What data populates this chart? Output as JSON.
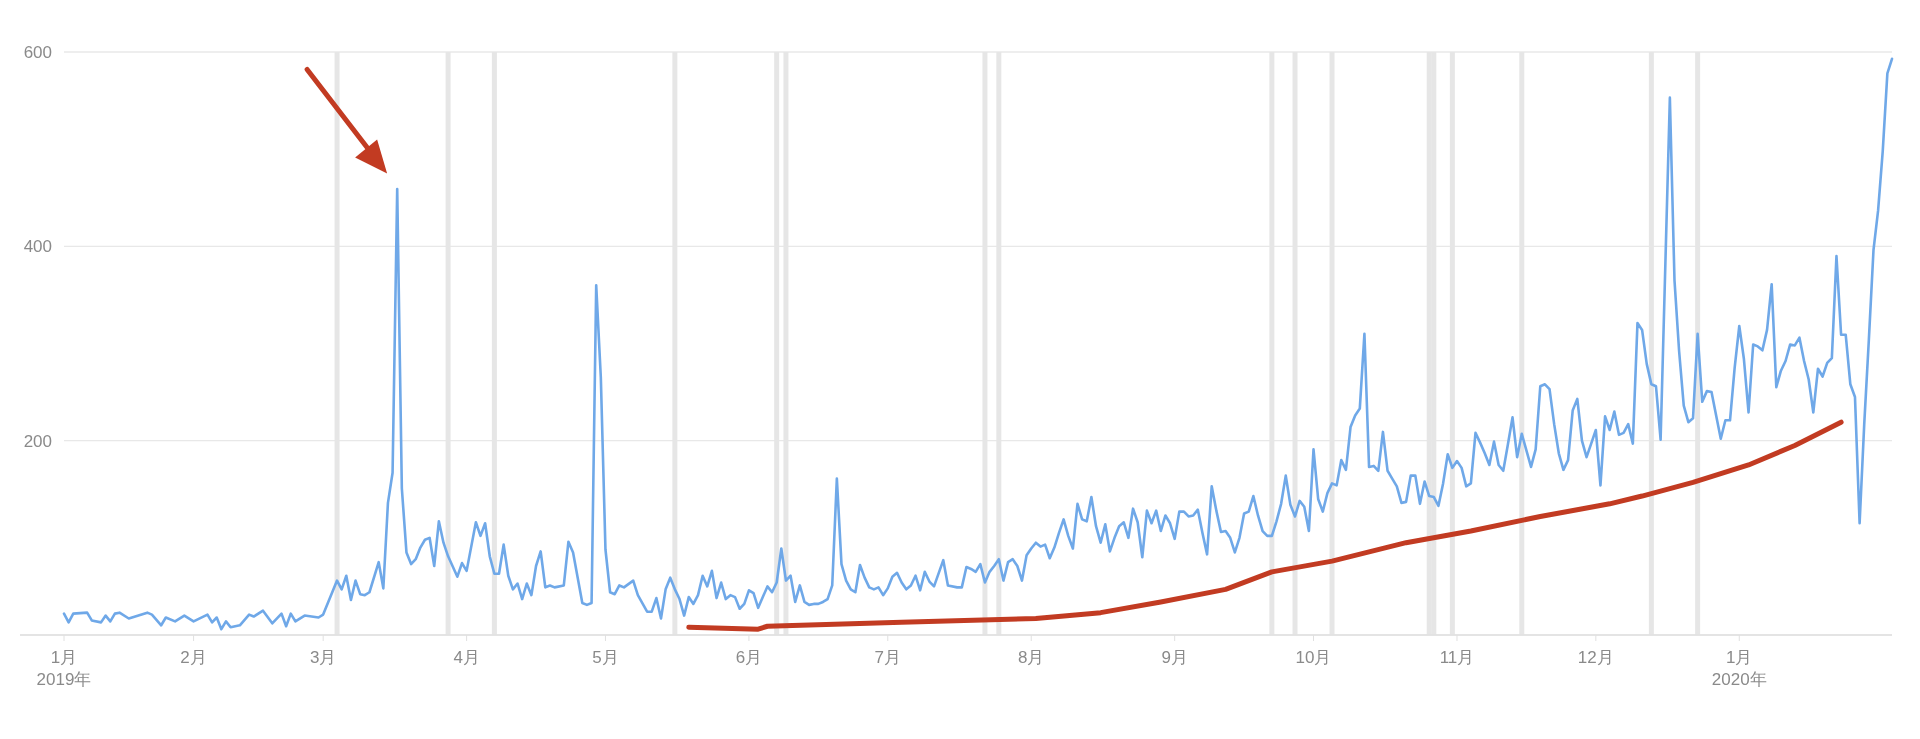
{
  "chart_data": {
    "type": "line",
    "xlim": [
      "2019-01-04",
      "2020-02-03"
    ],
    "xticks": [
      {
        "value": "2019-01-04",
        "label": "1月\n2019年"
      },
      {
        "value": "2019-02-01",
        "label": "2月"
      },
      {
        "value": "2019-03-01",
        "label": "3月"
      },
      {
        "value": "2019-04-01",
        "label": "4月"
      },
      {
        "value": "2019-05-01",
        "label": "5月"
      },
      {
        "value": "2019-06-01",
        "label": "6月"
      },
      {
        "value": "2019-07-01",
        "label": "7月"
      },
      {
        "value": "2019-08-01",
        "label": "8月"
      },
      {
        "value": "2019-09-01",
        "label": "9月"
      },
      {
        "value": "2019-10-01",
        "label": "10月"
      },
      {
        "value": "2019-11-01",
        "label": "11月"
      },
      {
        "value": "2019-12-01",
        "label": "12月"
      },
      {
        "value": "2020-01-01",
        "label": "1月\n2020年"
      }
    ],
    "ylim": [
      0,
      600
    ],
    "yticks": [
      {
        "value": 0,
        "label": null
      },
      200,
      400,
      600
    ],
    "grid": "y",
    "ref_lines": [
      {
        "axis": "x",
        "value": "2019-03-04",
        "color": "#e6e6e6"
      },
      {
        "axis": "x",
        "value": "2019-03-28",
        "color": "#e6e6e6"
      },
      {
        "axis": "x",
        "value": "2019-04-07",
        "color": "#e6e6e6"
      },
      {
        "axis": "x",
        "value": "2019-05-16",
        "color": "#e6e6e6"
      },
      {
        "axis": "x",
        "value": "2019-06-07",
        "color": "#e6e6e6"
      },
      {
        "axis": "x",
        "value": "2019-06-09",
        "color": "#e6e6e6"
      },
      {
        "axis": "x",
        "value": "2019-07-22",
        "color": "#e6e6e6"
      },
      {
        "axis": "x",
        "value": "2019-07-25",
        "color": "#e6e6e6"
      },
      {
        "axis": "x",
        "value": "2019-09-22",
        "color": "#e6e6e6"
      },
      {
        "axis": "x",
        "value": "2019-09-27",
        "color": "#e6e6e6"
      },
      {
        "axis": "x",
        "value": "2019-10-05",
        "color": "#e6e6e6"
      },
      {
        "axis": "x",
        "value": "2019-10-26",
        "color": "#e6e6e6"
      },
      {
        "axis": "x",
        "value": "2019-10-27",
        "color": "#e6e6e6"
      },
      {
        "axis": "x",
        "value": "2019-10-31",
        "color": "#e6e6e6"
      },
      {
        "axis": "x",
        "value": "2019-11-15",
        "color": "#e6e6e6"
      },
      {
        "axis": "x",
        "value": "2019-12-13",
        "color": "#e6e6e6"
      },
      {
        "axis": "x",
        "value": "2019-12-23",
        "color": "#e6e6e6"
      }
    ],
    "series": [
      {
        "color": "#6fa8e8",
        "x": [
          "2019-01-04",
          "2019-01-05",
          "2019-01-06",
          "2019-01-09",
          "2019-01-10",
          "2019-01-12",
          "2019-01-13",
          "2019-01-14",
          "2019-01-15",
          "2019-01-16",
          "2019-01-18",
          "2019-01-22",
          "2019-01-23",
          "2019-01-25",
          "2019-01-26",
          "2019-01-28",
          "2019-01-30",
          "2019-02-01",
          "2019-02-04",
          "2019-02-05",
          "2019-02-06",
          "2019-02-07",
          "2019-02-08",
          "2019-02-09",
          "2019-02-11",
          "2019-02-13",
          "2019-02-14",
          "2019-02-16",
          "2019-02-18",
          "2019-02-20",
          "2019-02-21",
          "2019-02-22",
          "2019-02-23",
          "2019-02-25",
          "2019-02-28",
          "2019-03-01",
          "2019-03-04",
          "2019-03-05",
          "2019-03-06",
          "2019-03-07",
          "2019-03-08",
          "2019-03-09",
          "2019-03-10",
          "2019-03-11",
          "2019-03-13",
          "2019-03-14",
          "2019-03-15",
          "2019-03-16",
          "2019-03-17",
          "2019-03-18",
          "2019-03-19",
          "2019-03-20",
          "2019-03-21",
          "2019-03-22",
          "2019-03-23",
          "2019-03-24",
          "2019-03-25",
          "2019-03-26",
          "2019-03-27",
          "2019-03-28",
          "2019-03-30",
          "2019-03-31",
          "2019-04-01",
          "2019-04-03",
          "2019-04-04",
          "2019-04-05",
          "2019-04-06",
          "2019-04-07",
          "2019-04-08",
          "2019-04-09",
          "2019-04-10",
          "2019-04-11",
          "2019-04-12",
          "2019-04-13",
          "2019-04-14",
          "2019-04-15",
          "2019-04-16",
          "2019-04-17",
          "2019-04-18",
          "2019-04-19",
          "2019-04-20",
          "2019-04-22",
          "2019-04-23",
          "2019-04-24",
          "2019-04-26",
          "2019-04-27",
          "2019-04-28",
          "2019-04-29",
          "2019-04-30",
          "2019-05-01",
          "2019-05-02",
          "2019-05-03",
          "2019-05-04",
          "2019-05-05",
          "2019-05-07",
          "2019-05-08",
          "2019-05-10",
          "2019-05-11",
          "2019-05-12",
          "2019-05-13",
          "2019-05-14",
          "2019-05-15",
          "2019-05-16",
          "2019-05-17",
          "2019-05-18",
          "2019-05-19",
          "2019-05-20",
          "2019-05-21",
          "2019-05-22",
          "2019-05-23",
          "2019-05-24",
          "2019-05-25",
          "2019-05-26",
          "2019-05-27",
          "2019-05-28",
          "2019-05-29",
          "2019-05-30",
          "2019-05-31",
          "2019-06-01",
          "2019-06-02",
          "2019-06-03",
          "2019-06-04",
          "2019-06-05",
          "2019-06-06",
          "2019-06-07",
          "2019-06-08",
          "2019-06-09",
          "2019-06-10",
          "2019-06-11",
          "2019-06-12",
          "2019-06-13",
          "2019-06-14",
          "2019-06-15",
          "2019-06-16",
          "2019-06-17",
          "2019-06-18",
          "2019-06-19",
          "2019-06-20",
          "2019-06-21",
          "2019-06-22",
          "2019-06-23",
          "2019-06-24",
          "2019-06-25",
          "2019-06-26",
          "2019-06-27",
          "2019-06-28",
          "2019-06-29",
          "2019-06-30",
          "2019-07-01",
          "2019-07-02",
          "2019-07-03",
          "2019-07-04",
          "2019-07-05",
          "2019-07-06",
          "2019-07-07",
          "2019-07-08",
          "2019-07-09",
          "2019-07-10",
          "2019-07-11",
          "2019-07-13",
          "2019-07-14",
          "2019-07-16",
          "2019-07-17",
          "2019-07-18",
          "2019-07-19",
          "2019-07-20",
          "2019-07-21",
          "2019-07-22",
          "2019-07-23",
          "2019-07-24",
          "2019-07-25",
          "2019-07-26",
          "2019-07-27",
          "2019-07-28",
          "2019-07-29",
          "2019-07-30",
          "2019-07-31",
          "2019-08-01",
          "2019-08-02",
          "2019-08-03",
          "2019-08-04",
          "2019-08-05",
          "2019-08-06",
          "2019-08-07",
          "2019-08-08",
          "2019-08-09",
          "2019-08-10",
          "2019-08-11",
          "2019-08-12",
          "2019-08-13",
          "2019-08-14",
          "2019-08-15",
          "2019-08-16",
          "2019-08-17",
          "2019-08-18",
          "2019-08-19",
          "2019-08-20",
          "2019-08-21",
          "2019-08-22",
          "2019-08-23",
          "2019-08-24",
          "2019-08-25",
          "2019-08-26",
          "2019-08-27",
          "2019-08-28",
          "2019-08-29",
          "2019-08-30",
          "2019-08-31",
          "2019-09-01",
          "2019-09-02",
          "2019-09-03",
          "2019-09-04",
          "2019-09-05",
          "2019-09-06",
          "2019-09-07",
          "2019-09-08",
          "2019-09-09",
          "2019-09-10",
          "2019-09-11",
          "2019-09-12",
          "2019-09-13",
          "2019-09-14",
          "2019-09-15",
          "2019-09-16",
          "2019-09-17",
          "2019-09-18",
          "2019-09-19",
          "2019-09-20",
          "2019-09-21",
          "2019-09-22",
          "2019-09-23",
          "2019-09-24",
          "2019-09-25",
          "2019-09-26",
          "2019-09-27",
          "2019-09-28",
          "2019-09-29",
          "2019-09-30",
          "2019-10-01",
          "2019-10-02",
          "2019-10-03",
          "2019-10-04",
          "2019-10-05",
          "2019-10-06",
          "2019-10-07",
          "2019-10-08",
          "2019-10-09",
          "2019-10-10",
          "2019-10-11",
          "2019-10-12",
          "2019-10-13",
          "2019-10-14",
          "2019-10-15",
          "2019-10-16",
          "2019-10-17",
          "2019-10-18",
          "2019-10-19",
          "2019-10-20",
          "2019-10-21",
          "2019-10-22",
          "2019-10-23",
          "2019-10-24",
          "2019-10-25",
          "2019-10-26",
          "2019-10-27",
          "2019-10-28",
          "2019-10-29",
          "2019-10-30",
          "2019-10-31",
          "2019-11-01",
          "2019-11-02",
          "2019-11-03",
          "2019-11-04",
          "2019-11-05",
          "2019-11-06",
          "2019-11-07",
          "2019-11-08",
          "2019-11-09",
          "2019-11-10",
          "2019-11-11",
          "2019-11-12",
          "2019-11-13",
          "2019-11-14",
          "2019-11-15",
          "2019-11-16",
          "2019-11-17",
          "2019-11-18",
          "2019-11-19",
          "2019-11-20",
          "2019-11-21",
          "2019-11-22",
          "2019-11-23",
          "2019-11-24",
          "2019-11-25",
          "2019-11-26",
          "2019-11-27",
          "2019-11-28",
          "2019-11-29",
          "2019-11-30",
          "2019-12-01",
          "2019-12-02",
          "2019-12-03",
          "2019-12-04",
          "2019-12-05",
          "2019-12-06",
          "2019-12-07",
          "2019-12-08",
          "2019-12-09",
          "2019-12-10",
          "2019-12-11",
          "2019-12-12",
          "2019-12-13",
          "2019-12-14",
          "2019-12-15",
          "2019-12-17",
          "2019-12-18",
          "2019-12-19",
          "2019-12-20",
          "2019-12-21",
          "2019-12-22",
          "2019-12-23",
          "2019-12-24",
          "2019-12-25",
          "2019-12-26",
          "2019-12-27",
          "2019-12-28",
          "2019-12-29",
          "2019-12-30",
          "2019-12-31",
          "2020-01-01",
          "2020-01-02",
          "2020-01-03",
          "2020-01-04",
          "2020-01-05",
          "2020-01-06",
          "2020-01-07",
          "2020-01-08",
          "2020-01-09",
          "2020-01-10",
          "2020-01-11",
          "2020-01-12",
          "2020-01-13",
          "2020-01-14",
          "2020-01-15",
          "2020-01-16",
          "2020-01-17",
          "2020-01-18",
          "2020-01-19",
          "2020-01-20",
          "2020-01-21",
          "2020-01-22",
          "2020-01-23",
          "2020-01-24",
          "2020-01-25",
          "2020-01-26",
          "2020-01-27",
          "2020-01-28",
          "2020-01-29",
          "2020-01-30",
          "2020-01-31",
          "2020-02-01",
          "2020-02-02",
          "2020-02-03"
        ],
        "values": [
          22,
          13,
          22,
          23,
          15,
          13,
          20,
          14,
          22,
          23,
          17,
          23,
          21,
          10,
          18,
          14,
          20,
          14,
          21,
          13,
          18,
          6,
          14,
          8,
          10,
          21,
          19,
          25,
          12,
          22,
          9,
          22,
          14,
          20,
          18,
          21,
          56,
          47,
          61,
          36,
          56,
          42,
          41,
          44,
          75,
          48,
          136,
          167,
          459,
          151,
          85,
          73,
          78,
          90,
          98,
          100,
          71,
          117,
          95,
          81,
          60,
          74,
          66,
          116,
          102,
          115,
          81,
          63,
          63,
          93,
          61,
          47,
          53,
          37,
          53,
          41,
          71,
          86,
          49,
          51,
          49,
          51,
          96,
          85,
          33,
          31,
          33,
          360,
          265,
          88,
          44,
          42,
          51,
          49,
          56,
          41,
          24,
          24,
          38,
          17,
          47,
          59,
          47,
          37,
          20,
          39,
          32,
          41,
          61,
          50,
          66,
          38,
          54,
          37,
          41,
          39,
          27,
          32,
          46,
          43,
          28,
          39,
          50,
          44,
          54,
          89,
          56,
          61,
          34,
          51,
          34,
          31,
          32,
          32,
          34,
          37,
          51,
          161,
          73,
          56,
          47,
          44,
          72,
          59,
          49,
          47,
          49,
          41,
          48,
          60,
          64,
          54,
          47,
          51,
          61,
          46,
          65,
          55,
          50,
          77,
          51,
          49,
          49,
          70,
          68,
          65,
          73,
          54,
          65,
          71,
          78,
          56,
          75,
          78,
          71,
          56,
          82,
          89,
          95,
          91,
          93,
          79,
          90,
          105,
          119,
          102,
          89,
          135,
          119,
          117,
          142,
          112,
          95,
          114,
          86,
          100,
          112,
          116,
          100,
          130,
          116,
          80,
          128,
          115,
          128,
          107,
          123,
          115,
          99,
          127,
          127,
          122,
          123,
          129,
          105,
          83,
          153,
          128,
          106,
          107,
          100,
          85,
          100,
          125,
          127,
          143,
          123,
          107,
          102,
          102,
          117,
          135,
          164,
          134,
          122,
          138,
          132,
          107,
          191,
          140,
          127,
          146,
          156,
          154,
          180,
          170,
          214,
          226,
          233,
          310,
          173,
          174,
          169,
          209,
          169,
          161,
          153,
          136,
          137,
          164,
          164,
          135,
          158,
          143,
          142,
          133,
          156,
          186,
          172,
          179,
          172,
          153,
          156,
          208,
          198,
          187,
          175,
          199,
          175,
          169,
          196,
          224,
          183,
          207,
          190,
          173,
          191,
          256,
          258,
          253,
          217,
          187,
          170,
          180,
          231,
          243,
          200,
          183,
          197,
          211,
          154,
          225,
          211,
          230,
          206,
          208,
          217,
          197,
          321,
          314,
          279,
          258,
          256,
          201,
          553,
          365,
          292,
          236,
          219,
          223,
          310,
          240,
          251,
          250,
          226,
          202,
          221,
          221,
          275,
          318,
          284,
          229,
          299,
          297,
          293,
          314,
          361,
          255,
          272,
          282,
          299,
          298,
          306,
          282,
          263,
          229,
          274,
          266,
          280,
          285,
          390,
          309,
          309,
          258,
          245,
          115,
          217,
          304,
          396,
          437,
          498,
          578,
          593
        ]
      },
      {
        "color": "#c23b22",
        "x": [
          "2019-05-19",
          "2019-06-03",
          "2019-06-05",
          "2019-07-04",
          "2019-08-02",
          "2019-08-16",
          "2019-08-29",
          "2019-09-12",
          "2019-09-22",
          "2019-10-05",
          "2019-10-21",
          "2019-11-04",
          "2019-11-19",
          "2019-12-04",
          "2019-12-11",
          "2019-12-22",
          "2020-01-03",
          "2020-01-13",
          "2020-01-23"
        ],
        "values": [
          8,
          6,
          9,
          13,
          17,
          23,
          34,
          47,
          65,
          76,
          95,
          107,
          122,
          135,
          143,
          157,
          175,
          195,
          219
        ]
      }
    ]
  }
}
